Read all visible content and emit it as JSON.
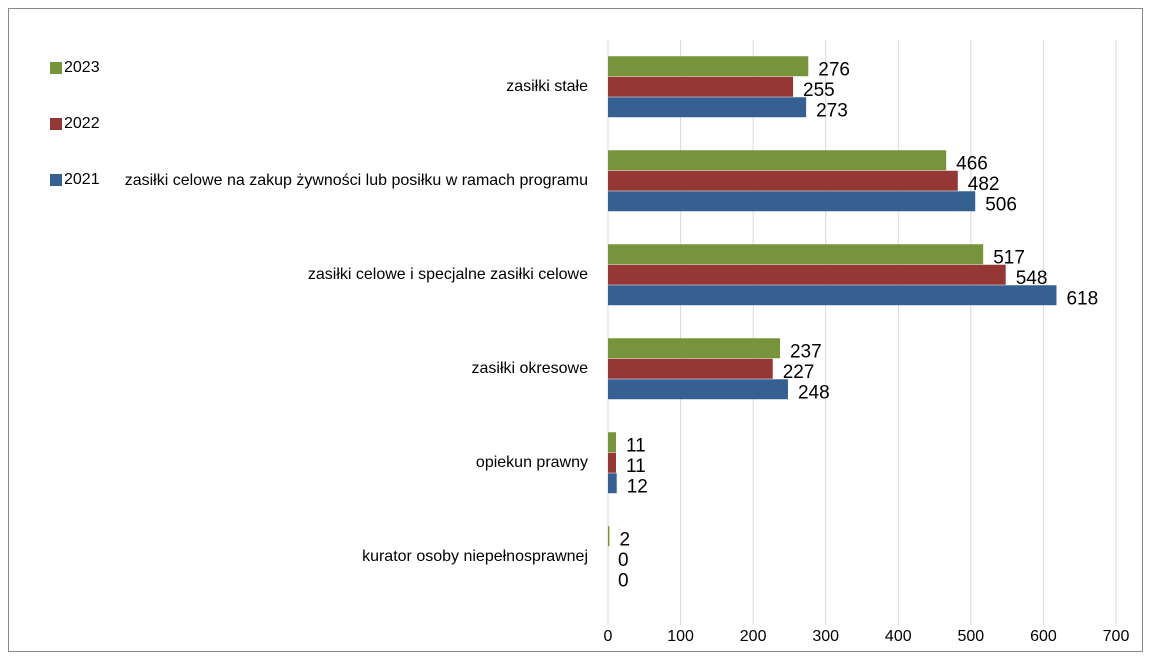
{
  "chart_data": {
    "type": "hbar",
    "categories": [
      "zasiłki stałe",
      "zasiłki celowe na zakup żywności lub posiłku w ramach programu",
      "zasiłki celowe i specjalne zasiłki celowe",
      "zasiłki okresowe",
      "opiekun prawny",
      "kurator osoby niepełnosprawnej"
    ],
    "series": [
      {
        "name": "2023",
        "color": "#77933c",
        "values": [
          276,
          466,
          517,
          237,
          11,
          2
        ]
      },
      {
        "name": "2022",
        "color": "#953735",
        "values": [
          255,
          482,
          548,
          227,
          11,
          0
        ]
      },
      {
        "name": "2021",
        "color": "#376092",
        "values": [
          273,
          506,
          618,
          248,
          12,
          0
        ]
      }
    ],
    "xlim": [
      0,
      700
    ],
    "xticks": [
      0,
      100,
      200,
      300,
      400,
      500,
      600,
      700
    ],
    "grid": true,
    "legend": "top-left"
  }
}
